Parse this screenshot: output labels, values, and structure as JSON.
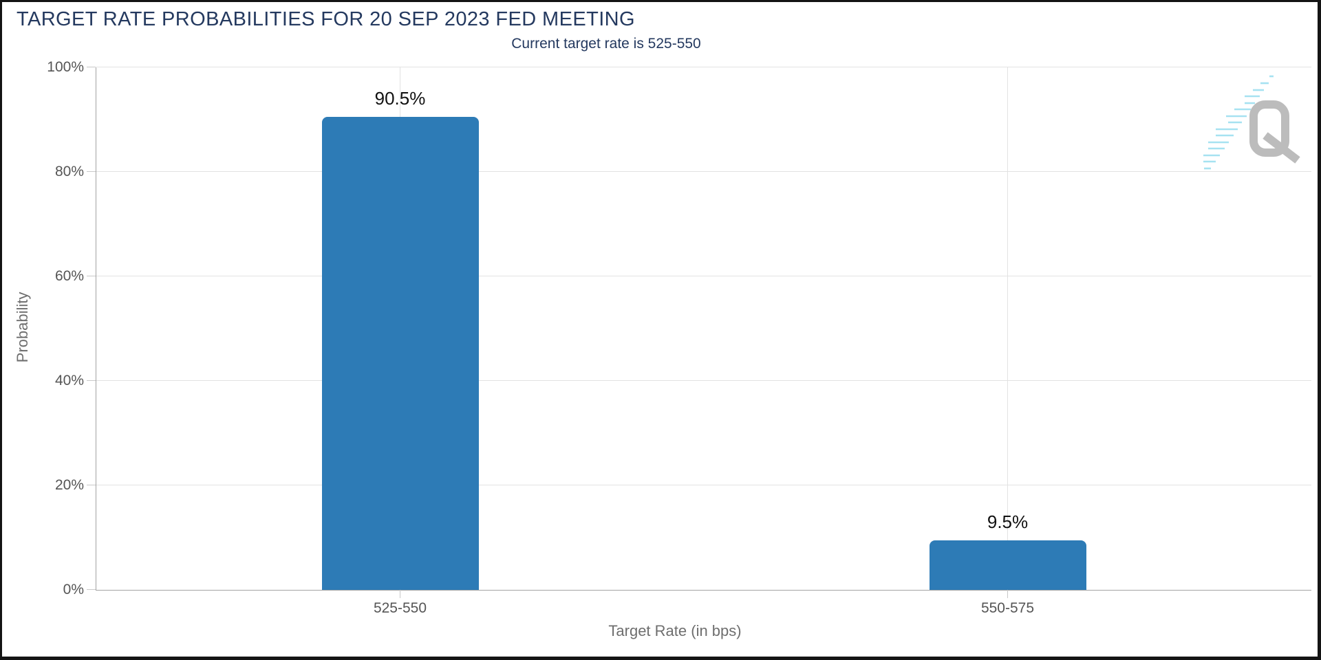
{
  "chart_data": {
    "type": "bar",
    "title": "TARGET RATE PROBABILITIES FOR 20 SEP 2023 FED MEETING",
    "subtitle": "Current target rate is 525-550",
    "categories": [
      "525-550",
      "550-575"
    ],
    "values": [
      90.5,
      9.5
    ],
    "value_labels": [
      "90.5%",
      "9.5%"
    ],
    "xlabel": "Target Rate (in bps)",
    "ylabel": "Probability",
    "ylim": [
      0,
      100
    ],
    "ytick_step": 20,
    "ytick_labels": [
      "0%",
      "20%",
      "40%",
      "60%",
      "80%",
      "100%"
    ],
    "grid": true,
    "legend": "none",
    "bar_color": "#2d7bb6"
  },
  "watermark": {
    "letter": "Q"
  },
  "colors": {
    "title_text": "#24395f",
    "axis_label_text": "#555555",
    "axis_title_text": "#6e6e6e",
    "bar": "#2d7bb6",
    "gridline": "#e2e2e2",
    "axis_line": "#a3a3a3",
    "data_label_text": "#111111",
    "logo_gray": "#b7b7b7",
    "logo_cyan": "#9fe0f0"
  }
}
